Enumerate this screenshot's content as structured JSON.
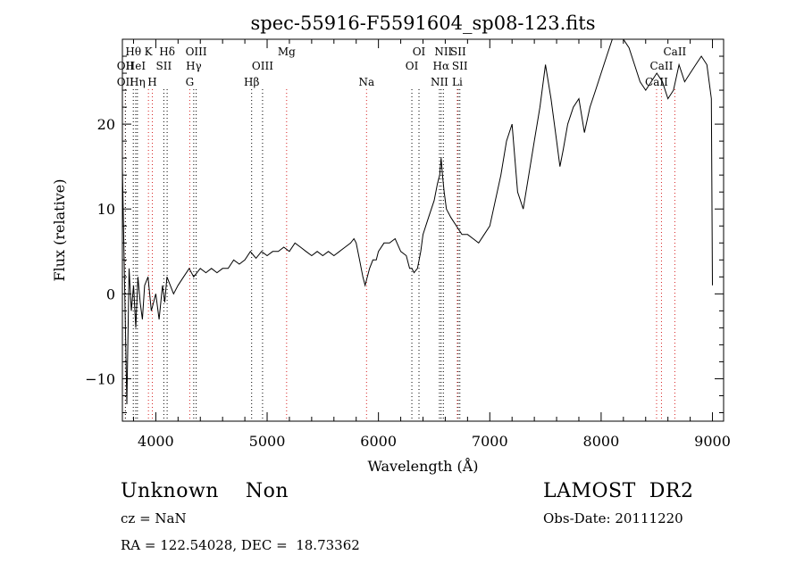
{
  "chart_data": {
    "type": "line",
    "title": "spec-55916-F5591604_sp08-123.fits",
    "xlabel": "Wavelength (Å)",
    "ylabel": "Flux (relative)",
    "xlim": [
      3700,
      9100
    ],
    "ylim": [
      -15,
      30
    ],
    "xticks": [
      4000,
      5000,
      6000,
      7000,
      8000,
      9000
    ],
    "xtick_labels": [
      "4000",
      "5000",
      "6000",
      "7000",
      "8000",
      "9000"
    ],
    "yticks": [
      -10,
      0,
      10,
      20
    ],
    "ytick_labels": [
      "−10",
      "0",
      "10",
      "20"
    ],
    "grid": false,
    "series": [
      {
        "x": [
          3700,
          3740,
          3760,
          3780,
          3800,
          3820,
          3840,
          3860,
          3880,
          3900,
          3930,
          3960,
          4000,
          4030,
          4060,
          4080,
          4100,
          4130,
          4160,
          4200,
          4250,
          4300,
          4340,
          4400,
          4450,
          4500,
          4550,
          4600,
          4650,
          4700,
          4750,
          4800,
          4850,
          4880,
          4900,
          4950,
          5000,
          5050,
          5100,
          5150,
          5200,
          5250,
          5300,
          5350,
          5400,
          5450,
          5500,
          5550,
          5600,
          5650,
          5700,
          5750,
          5780,
          5800,
          5830,
          5860,
          5880,
          5900,
          5920,
          5950,
          5980,
          6000,
          6050,
          6100,
          6150,
          6200,
          6250,
          6280,
          6300,
          6320,
          6350,
          6380,
          6400,
          6450,
          6500,
          6530,
          6550,
          6563,
          6575,
          6590,
          6610,
          6650,
          6700,
          6750,
          6800,
          6850,
          6900,
          6950,
          7000,
          7050,
          7100,
          7150,
          7200,
          7250,
          7300,
          7350,
          7400,
          7450,
          7500,
          7550,
          7600,
          7630,
          7660,
          7700,
          7750,
          7800,
          7850,
          7900,
          7950,
          8000,
          8050,
          8100,
          8150,
          8200,
          8250,
          8300,
          8350,
          8400,
          8450,
          8500,
          8550,
          8600,
          8650,
          8700,
          8750,
          8800,
          8850,
          8900,
          8950,
          8990,
          9000
        ],
        "y": [
          15,
          -13,
          3,
          -2,
          1,
          -4,
          2,
          -1,
          -3,
          1,
          2,
          -2,
          0,
          -3,
          1,
          -1,
          2,
          1,
          0,
          1,
          2,
          3,
          2,
          3,
          2.5,
          3,
          2.5,
          3,
          3,
          4,
          3.5,
          4,
          5,
          4.5,
          4.2,
          5,
          4.5,
          5,
          5,
          5.5,
          5,
          6,
          5.5,
          5,
          4.5,
          5,
          4.5,
          5,
          4.5,
          5,
          5.5,
          6,
          6.5,
          6,
          4,
          2,
          1,
          2,
          3,
          4,
          4,
          5,
          6,
          6,
          6.5,
          5,
          4.5,
          3,
          3,
          2.5,
          3,
          5,
          7,
          9,
          11,
          13,
          14,
          16,
          14,
          12,
          10,
          9,
          8,
          7,
          7,
          6.5,
          6,
          7,
          8,
          11,
          14,
          18,
          20,
          12,
          10,
          14,
          18,
          22,
          27,
          23,
          18,
          15,
          17,
          20,
          22,
          23,
          19,
          22,
          24,
          26,
          28,
          30,
          32,
          31,
          29,
          27,
          25,
          24,
          25,
          26,
          25,
          23,
          24,
          27,
          25,
          26,
          27,
          28,
          27,
          23,
          1
        ]
      }
    ],
    "line_markers": [
      {
        "label": "OII",
        "wl": 3727,
        "color": "red",
        "row": 2
      },
      {
        "label": "OII",
        "wl": 3727,
        "color": "black",
        "row": 3
      },
      {
        "label": "Hθ",
        "wl": 3798,
        "color": "black",
        "row": 1
      },
      {
        "label": "HeI",
        "wl": 3820,
        "color": "black",
        "row": 2
      },
      {
        "label": "Hη",
        "wl": 3835,
        "color": "black",
        "row": 3
      },
      {
        "label": "K",
        "wl": 3934,
        "color": "red",
        "row": 1
      },
      {
        "label": "SII",
        "wl": 4072,
        "color": "black",
        "row": 2
      },
      {
        "label": "H",
        "wl": 3969,
        "color": "red",
        "row": 3
      },
      {
        "label": "Hδ",
        "wl": 4102,
        "color": "black",
        "row": 1
      },
      {
        "label": "OIII",
        "wl": 4363,
        "color": "black",
        "row": 1
      },
      {
        "label": "Hγ",
        "wl": 4341,
        "color": "black",
        "row": 2
      },
      {
        "label": "G",
        "wl": 4305,
        "color": "red",
        "row": 3
      },
      {
        "label": "OIII",
        "wl": 4959,
        "color": "black",
        "row": 2
      },
      {
        "label": "Hβ",
        "wl": 4861,
        "color": "black",
        "row": 3
      },
      {
        "label": "Mg",
        "wl": 5175,
        "color": "red",
        "row": 1
      },
      {
        "label": "Na",
        "wl": 5893,
        "color": "red",
        "row": 3
      },
      {
        "label": "OI",
        "wl": 6364,
        "color": "black",
        "row": 1
      },
      {
        "label": "OI",
        "wl": 6300,
        "color": "black",
        "row": 2
      },
      {
        "label": "NII",
        "wl": 6583,
        "color": "black",
        "row": 1
      },
      {
        "label": "SII",
        "wl": 6716,
        "color": "black",
        "row": 1
      },
      {
        "label": "Hα",
        "wl": 6563,
        "color": "black",
        "row": 2
      },
      {
        "label": "SII",
        "wl": 6731,
        "color": "black",
        "row": 2
      },
      {
        "label": "NII",
        "wl": 6548,
        "color": "black",
        "row": 3
      },
      {
        "label": "Li",
        "wl": 6708,
        "color": "red",
        "row": 3
      },
      {
        "label": "CaII",
        "wl": 8662,
        "color": "red",
        "row": 1
      },
      {
        "label": "CaII",
        "wl": 8542,
        "color": "red",
        "row": 2
      },
      {
        "label": "CaII",
        "wl": 8498,
        "color": "red",
        "row": 3
      }
    ]
  },
  "info": {
    "object_class": "Unknown    Non",
    "survey": "LAMOST  DR2",
    "cz": "cz = NaN",
    "obs_date": "Obs-Date: 20111220",
    "ra_dec": "RA = 122.54028, DEC =  18.73362"
  }
}
